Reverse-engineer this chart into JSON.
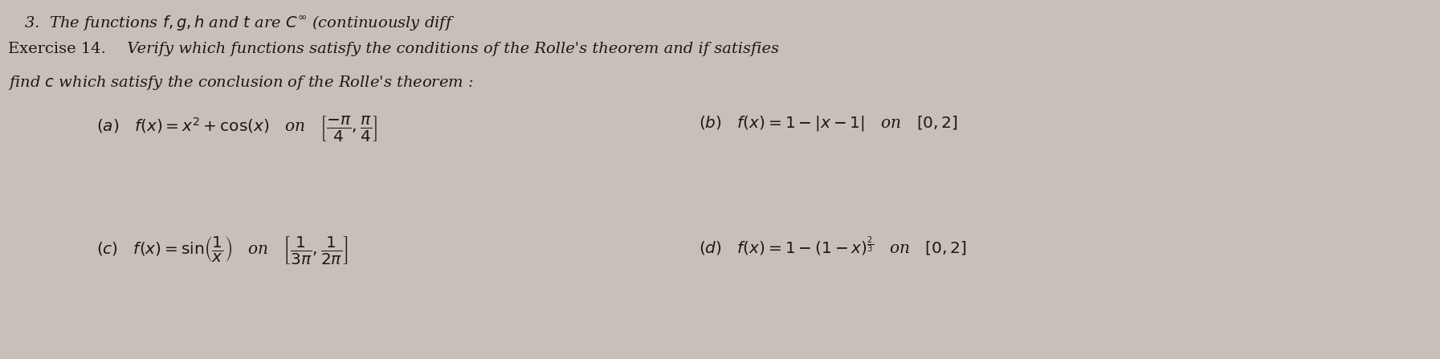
{
  "background_color": "#c8c0b8",
  "text_color": "#1a1818",
  "top_text": "3.  The functions $f, g, h$ and $t$ are $C^\\infty$ (continuously diff",
  "ex_bold": "Exercise 14.",
  "ex_italic": " Verify which functions satisfy the conditions of the Rolle’s theorem and if satisfies",
  "line2_italic": "find $c$ which satisfy the conclusion of the Rolle’s theorem :",
  "part_a": "$(a)$   $f(x) = x^2 + \\cos(x)$   on   $\\left[\\dfrac{-\\pi}{4}, \\dfrac{\\pi}{4}\\right]$",
  "part_b": "$(b)$   $f(x) = 1 - |x - 1|$   on   $[0, 2]$",
  "part_c": "$(c)$   $f(x) = \\sin\\!\\left(\\dfrac{1}{x}\\right)$   on   $\\left[\\dfrac{1}{3\\pi}, \\dfrac{1}{2\\pi}\\right]$",
  "part_d": "$(d)$   $f(x) = 1 - (1 - x)^{\\frac{2}{3}}$   on   $[0, 2]$",
  "font_size_top": 14,
  "font_size_exercise": 14,
  "font_size_parts": 14.5,
  "figwidth": 17.93,
  "figheight": 4.47,
  "dpi": 100
}
